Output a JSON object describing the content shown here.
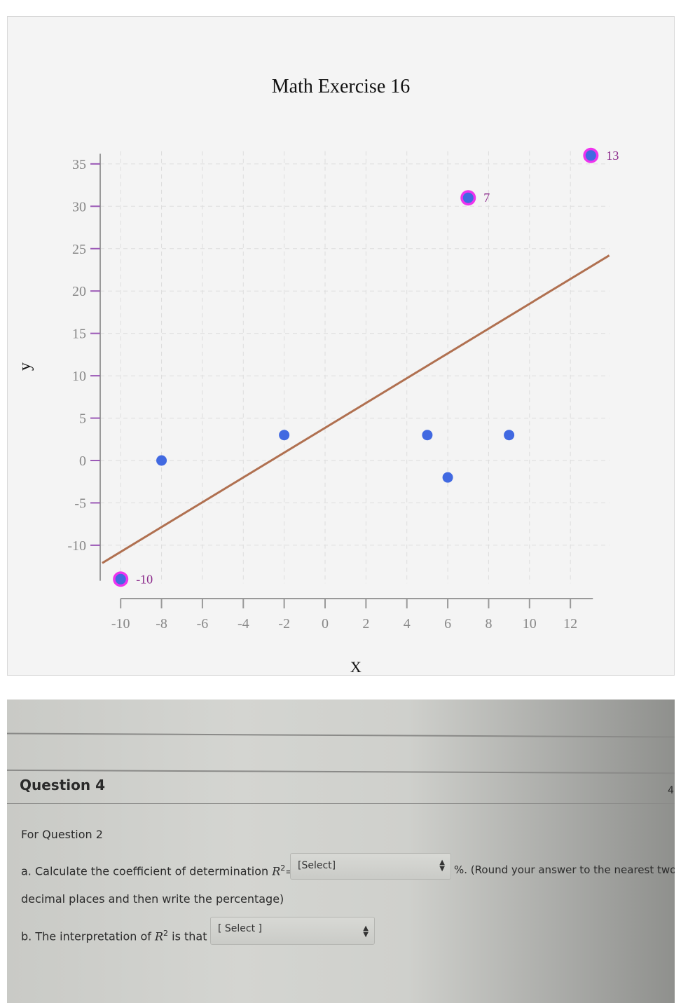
{
  "chart_data": {
    "type": "scatter",
    "title": "Math Exercise 16",
    "xlabel": "X",
    "ylabel": "y",
    "xlim": [
      -11,
      13.5
    ],
    "ylim": [
      -15,
      36
    ],
    "x_ticks": [
      -10,
      -8,
      -6,
      -4,
      -2,
      0,
      2,
      4,
      6,
      8,
      10,
      12
    ],
    "y_ticks": [
      35,
      30,
      25,
      20,
      15,
      10,
      5,
      0,
      -5,
      -10
    ],
    "grid": true,
    "points": [
      {
        "x": -10,
        "y": -14,
        "highlighted": true,
        "label": "-10"
      },
      {
        "x": -8,
        "y": 0,
        "highlighted": false
      },
      {
        "x": -2,
        "y": 3,
        "highlighted": false
      },
      {
        "x": 5,
        "y": 3,
        "highlighted": false
      },
      {
        "x": 6,
        "y": -2,
        "highlighted": false
      },
      {
        "x": 7,
        "y": 31,
        "highlighted": true,
        "label": "7"
      },
      {
        "x": 9,
        "y": 3,
        "highlighted": false
      },
      {
        "x": 13,
        "y": 36,
        "highlighted": true,
        "label": "13"
      }
    ],
    "regression_line": {
      "x1": -10.9,
      "y1": -12.1,
      "x2": 13.9,
      "y2": 24.2,
      "color": "#b07050"
    },
    "colors": {
      "point": "#4169e1",
      "highlight_ring": "#ee33ee",
      "label": "#8b2a8b",
      "tick_mark": "#9b59b6",
      "axis": "#999999",
      "grid": "#dddddd"
    }
  },
  "question": {
    "title": "Question 4",
    "side_number": "4",
    "intro": "For Question 2",
    "part_a_prefix": "a. Calculate the coefficient of determination ",
    "r2": "R",
    "sup": "2",
    "equals": "=",
    "part_a_select": "[Select]",
    "part_a_suffix": "%. (Round your answer to the nearest two",
    "part_a_line2": "decimal places and then write the percentage)",
    "part_b_prefix": "b. The interpretation of ",
    "part_b_middle": " is that",
    "part_b_select": "[ Select ]"
  }
}
